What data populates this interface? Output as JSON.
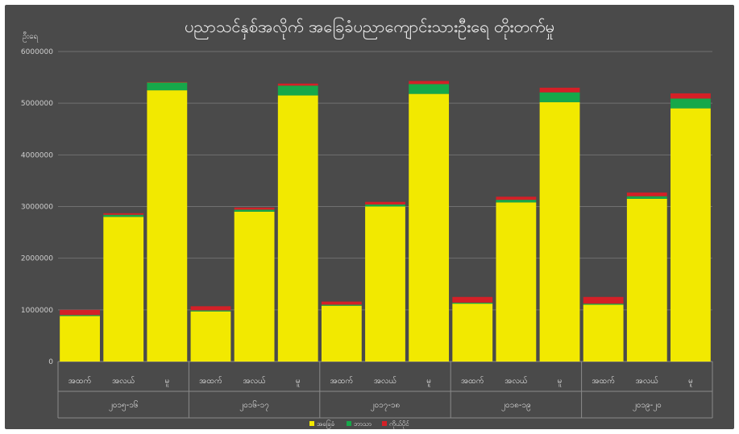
{
  "chart_data": {
    "type": "bar",
    "stacked": true,
    "title": "ပညာသင်နှစ်အလိုက် အခြေခံပညာကျောင်းသားဦးရေ တိုးတက်မှု",
    "unit_label": "ဦးရေ",
    "ylim": [
      0,
      6000000
    ],
    "yticks": [
      "0",
      "1000000",
      "2000000",
      "3000000",
      "4000000",
      "5000000",
      "6000000"
    ],
    "grid": true,
    "legend_position": "bottom",
    "groups": [
      "၂၀၁၅-၁၆",
      "၂၀၁၆-၁၇",
      "၂၀၁၇-၁၈",
      "၂၀၁၈-၁၉",
      "၂၀၁၉-၂၀"
    ],
    "categories": [
      "အထက်",
      "အလယ်",
      "မူ"
    ],
    "series": [
      {
        "name": "အခြေခံ",
        "color": "#f2e900",
        "values": [
          [
            880000,
            2800000,
            5250000
          ],
          [
            970000,
            2900000,
            5150000
          ],
          [
            1080000,
            3000000,
            5180000
          ],
          [
            1120000,
            3080000,
            5020000
          ],
          [
            1100000,
            3150000,
            4900000
          ]
        ]
      },
      {
        "name": "ဘာသာ",
        "color": "#16a84a",
        "values": [
          [
            20000,
            40000,
            150000
          ],
          [
            20000,
            40000,
            190000
          ],
          [
            20000,
            40000,
            190000
          ],
          [
            20000,
            50000,
            190000
          ],
          [
            20000,
            50000,
            190000
          ]
        ]
      },
      {
        "name": "ကိုယ်ပိုင်",
        "color": "#d42027",
        "values": [
          [
            100000,
            30000,
            10000
          ],
          [
            80000,
            40000,
            40000
          ],
          [
            60000,
            50000,
            60000
          ],
          [
            110000,
            60000,
            90000
          ],
          [
            130000,
            70000,
            100000
          ]
        ]
      }
    ]
  }
}
